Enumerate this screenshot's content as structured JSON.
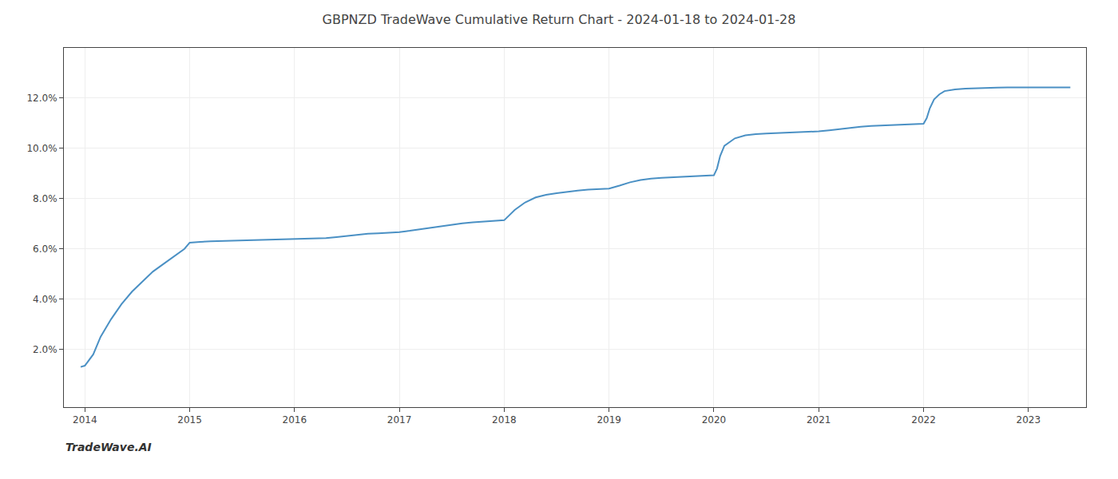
{
  "chart_data": {
    "type": "line",
    "title": "GBPNZD TradeWave Cumulative Return Chart - 2024-01-18 to 2024-01-28",
    "annotations": [
      "TradeWave.AI"
    ],
    "color": "#4a90c4",
    "grid": true,
    "x": [
      2013.96,
      2014.0,
      2014.08,
      2014.15,
      2014.25,
      2014.35,
      2014.45,
      2014.55,
      2014.65,
      2014.75,
      2014.85,
      2014.95,
      2015.0,
      2015.05,
      2015.1,
      2015.2,
      2015.3,
      2015.4,
      2015.5,
      2015.6,
      2015.7,
      2015.8,
      2015.9,
      2016.0,
      2016.1,
      2016.2,
      2016.3,
      2016.4,
      2016.5,
      2016.6,
      2016.7,
      2016.8,
      2016.9,
      2017.0,
      2017.1,
      2017.2,
      2017.3,
      2017.4,
      2017.5,
      2017.6,
      2017.7,
      2017.8,
      2017.9,
      2018.0,
      2018.1,
      2018.2,
      2018.3,
      2018.4,
      2018.5,
      2018.6,
      2018.7,
      2018.8,
      2018.9,
      2019.0,
      2019.1,
      2019.2,
      2019.3,
      2019.4,
      2019.5,
      2019.6,
      2019.7,
      2019.8,
      2019.9,
      2020.0,
      2020.03,
      2020.06,
      2020.1,
      2020.2,
      2020.3,
      2020.4,
      2020.5,
      2020.6,
      2020.7,
      2020.8,
      2020.9,
      2021.0,
      2021.1,
      2021.2,
      2021.3,
      2021.4,
      2021.5,
      2021.6,
      2021.7,
      2021.8,
      2021.9,
      2022.0,
      2022.03,
      2022.06,
      2022.1,
      2022.15,
      2022.2,
      2022.3,
      2022.4,
      2022.5,
      2022.6,
      2022.7,
      2022.8,
      2022.9,
      2023.0,
      2023.1,
      2023.2,
      2023.3,
      2023.4
    ],
    "values": [
      1.3,
      1.35,
      1.8,
      2.5,
      3.2,
      3.8,
      4.3,
      4.7,
      5.1,
      5.4,
      5.7,
      6.0,
      6.25,
      6.27,
      6.28,
      6.3,
      6.31,
      6.32,
      6.33,
      6.34,
      6.35,
      6.36,
      6.37,
      6.38,
      6.39,
      6.4,
      6.43,
      6.47,
      6.52,
      6.57,
      6.6,
      6.62,
      6.64,
      6.67,
      6.72,
      6.78,
      6.85,
      6.92,
      6.97,
      7.02,
      7.06,
      7.09,
      7.11,
      7.14,
      7.55,
      7.85,
      8.05,
      8.15,
      8.22,
      8.28,
      8.32,
      8.36,
      8.38,
      8.4,
      8.52,
      8.65,
      8.74,
      8.8,
      8.83,
      8.85,
      8.87,
      8.89,
      8.91,
      8.93,
      9.2,
      9.7,
      10.1,
      10.4,
      10.52,
      10.57,
      10.59,
      10.61,
      10.63,
      10.64,
      10.65,
      10.68,
      10.72,
      10.77,
      10.82,
      10.86,
      10.89,
      10.91,
      10.92,
      10.94,
      10.96,
      10.98,
      11.2,
      11.6,
      11.95,
      12.15,
      12.28,
      12.35,
      12.38,
      12.4,
      12.41,
      12.42,
      12.43,
      12.43,
      12.43,
      12.43,
      12.43,
      12.43,
      12.43
    ],
    "xlim": [
      2013.8,
      2023.55
    ],
    "ylim": [
      -0.3,
      14.0
    ],
    "xticks": [
      2014,
      2015,
      2016,
      2017,
      2018,
      2019,
      2020,
      2021,
      2022,
      2023
    ],
    "yticks": [
      {
        "value": 2.0,
        "label": "2.0%"
      },
      {
        "value": 4.0,
        "label": "4.0%"
      },
      {
        "value": 6.0,
        "label": "6.0%"
      },
      {
        "value": 8.0,
        "label": "8.0%"
      },
      {
        "value": 10.0,
        "label": "10.0%"
      },
      {
        "value": 12.0,
        "label": "12.0%"
      }
    ]
  }
}
